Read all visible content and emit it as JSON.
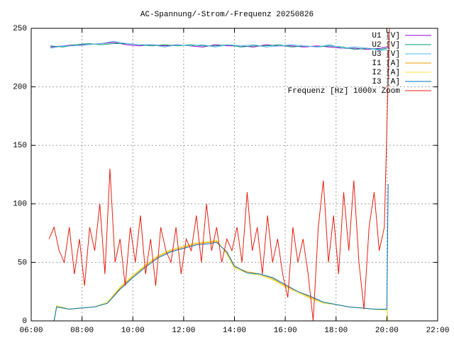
{
  "chart_data": {
    "type": "line",
    "title": "AC-Spannung/-Strom/-Frequenz 20250826",
    "xlim": [
      6,
      22
    ],
    "xticks": [
      {
        "value": 6,
        "label": "06:00"
      },
      {
        "value": 8,
        "label": "08:00"
      },
      {
        "value": 10,
        "label": "10:00"
      },
      {
        "value": 12,
        "label": "12:00"
      },
      {
        "value": 14,
        "label": "14:00"
      },
      {
        "value": 16,
        "label": "16:00"
      },
      {
        "value": 18,
        "label": "18:00"
      },
      {
        "value": 20,
        "label": "20:00"
      },
      {
        "value": 22,
        "label": "22:00"
      }
    ],
    "ylim": [
      0,
      250
    ],
    "yticks": [
      0,
      50,
      100,
      150,
      200,
      250
    ],
    "grid": true,
    "legend": "top-right",
    "series": [
      {
        "name": "U1 [V]",
        "color": "#9400d3",
        "x": [
          6.75,
          7.25,
          7.75,
          8.25,
          8.75,
          9.25,
          9.75,
          10.25,
          10.75,
          11.25,
          11.75,
          12.25,
          12.75,
          13.25,
          13.75,
          14.25,
          14.75,
          15.25,
          15.75,
          16.25,
          16.75,
          17.25,
          17.75,
          18.25,
          18.75,
          19.25,
          19.75,
          20.0
        ],
        "values": [
          234,
          235,
          236,
          236,
          237,
          238,
          236,
          235,
          236,
          235,
          236,
          235,
          234,
          236,
          235,
          235,
          234,
          236,
          235,
          235,
          234,
          235,
          234,
          233,
          233,
          232,
          233,
          234
        ]
      },
      {
        "name": "U2 [V]",
        "color": "#009e73",
        "x": [
          6.75,
          7.25,
          7.75,
          8.25,
          8.75,
          9.25,
          9.75,
          10.25,
          10.75,
          11.25,
          11.75,
          12.25,
          12.75,
          13.25,
          13.75,
          14.25,
          14.75,
          15.25,
          15.75,
          16.25,
          16.75,
          17.25,
          17.75,
          18.25,
          18.75,
          19.25,
          19.75,
          20.0
        ],
        "values": [
          235,
          234,
          236,
          237,
          236,
          237,
          237,
          236,
          235,
          236,
          235,
          236,
          235,
          235,
          236,
          234,
          235,
          235,
          236,
          234,
          235,
          234,
          235,
          234,
          232,
          233,
          232,
          233
        ]
      },
      {
        "name": "U3 [V]",
        "color": "#56b4e9",
        "x": [
          6.75,
          7.25,
          7.75,
          8.25,
          8.75,
          9.25,
          9.75,
          10.25,
          10.75,
          11.25,
          11.75,
          12.25,
          12.75,
          13.25,
          13.75,
          14.25,
          14.75,
          15.25,
          15.75,
          16.25,
          16.75,
          17.25,
          17.75,
          18.25,
          18.75,
          19.25,
          19.75,
          20.0
        ],
        "values": [
          233,
          235,
          235,
          236,
          237,
          239,
          237,
          236,
          236,
          234,
          236,
          235,
          236,
          234,
          236,
          235,
          236,
          234,
          235,
          236,
          235,
          234,
          236,
          233,
          234,
          233,
          231,
          232
        ]
      },
      {
        "name": "I1 [A]",
        "color": "#e69f00",
        "x": [
          6.9,
          7.0,
          7.5,
          8.0,
          8.5,
          9.0,
          9.5,
          10.0,
          10.5,
          11.0,
          11.5,
          12.0,
          12.5,
          13.0,
          13.3,
          13.7,
          14.0,
          14.5,
          15.0,
          15.5,
          16.0,
          16.5,
          17.0,
          17.5,
          18.0,
          18.5,
          19.0,
          19.5,
          20.0,
          20.05
        ],
        "values": [
          0,
          12,
          10,
          11,
          12,
          15,
          28,
          38,
          47,
          55,
          60,
          63,
          66,
          67,
          68,
          58,
          46,
          42,
          40,
          36,
          30,
          25,
          20,
          16,
          14,
          12,
          11,
          10,
          10,
          0
        ]
      },
      {
        "name": "I2 [A]",
        "color": "#f0e442",
        "x": [
          6.9,
          7.0,
          7.5,
          8.0,
          8.5,
          9.0,
          9.5,
          10.0,
          10.5,
          11.0,
          11.5,
          12.0,
          12.5,
          13.0,
          13.3,
          13.7,
          14.0,
          14.5,
          15.0,
          15.5,
          16.0,
          16.5,
          17.0,
          17.5,
          18.0,
          18.5,
          19.0,
          19.5,
          20.0,
          20.05
        ],
        "values": [
          0,
          13,
          10,
          11,
          12,
          16,
          29,
          39,
          48,
          56,
          61,
          64,
          67,
          68,
          69,
          57,
          45,
          41,
          39,
          35,
          29,
          24,
          19,
          15,
          14,
          12,
          11,
          10,
          9,
          0
        ]
      },
      {
        "name": "I3 [A]",
        "color": "#0072b2",
        "x": [
          6.9,
          7.0,
          7.5,
          8.0,
          8.5,
          9.0,
          9.5,
          10.0,
          10.5,
          11.0,
          11.5,
          12.0,
          12.5,
          13.0,
          13.3,
          13.7,
          14.0,
          14.5,
          15.0,
          15.5,
          16.0,
          16.5,
          17.0,
          17.5,
          18.0,
          18.5,
          19.0,
          19.5,
          20.0,
          20.05
        ],
        "values": [
          0,
          12,
          10,
          11,
          12,
          15,
          27,
          37,
          46,
          54,
          59,
          62,
          65,
          66,
          67,
          59,
          47,
          41,
          40,
          37,
          31,
          25,
          21,
          16,
          14,
          12,
          11,
          10,
          10,
          117
        ]
      },
      {
        "name": "Frequenz [Hz] 1000x Zoom",
        "color": "#e51e10",
        "x": [
          6.7,
          6.9,
          7.1,
          7.3,
          7.5,
          7.7,
          7.9,
          8.1,
          8.3,
          8.5,
          8.7,
          8.9,
          9.1,
          9.3,
          9.5,
          9.7,
          9.9,
          10.1,
          10.3,
          10.5,
          10.7,
          10.9,
          11.1,
          11.3,
          11.5,
          11.7,
          11.9,
          12.1,
          12.3,
          12.5,
          12.7,
          12.9,
          13.1,
          13.3,
          13.5,
          13.7,
          13.9,
          14.1,
          14.3,
          14.5,
          14.7,
          14.9,
          15.1,
          15.3,
          15.5,
          15.7,
          15.9,
          16.1,
          16.3,
          16.5,
          16.7,
          16.9,
          17.1,
          17.3,
          17.5,
          17.7,
          17.9,
          18.1,
          18.3,
          18.5,
          18.7,
          18.9,
          19.1,
          19.3,
          19.5,
          19.7,
          19.9,
          20.1
        ],
        "values": [
          70,
          80,
          60,
          50,
          80,
          40,
          70,
          30,
          80,
          60,
          100,
          40,
          130,
          50,
          70,
          30,
          80,
          50,
          90,
          40,
          70,
          30,
          80,
          60,
          50,
          80,
          40,
          70,
          60,
          90,
          50,
          100,
          60,
          80,
          50,
          70,
          60,
          80,
          50,
          110,
          60,
          80,
          40,
          90,
          50,
          70,
          40,
          20,
          80,
          50,
          70,
          40,
          0,
          80,
          120,
          50,
          90,
          40,
          110,
          60,
          120,
          50,
          10,
          80,
          110,
          60,
          80,
          250
        ]
      }
    ]
  }
}
